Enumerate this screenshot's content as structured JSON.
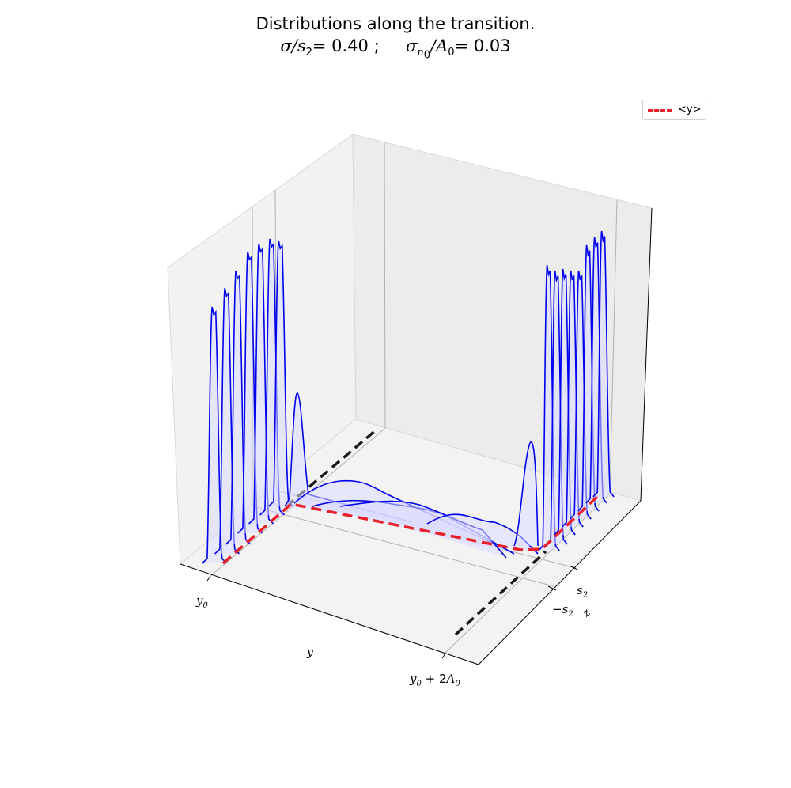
{
  "title": {
    "line1": "Distributions along the transition.",
    "line2_sigma": "σ",
    "line2_over": "/",
    "line2_s": "s",
    "line2_s_sub": "2",
    "line2_eq1": "= 0.40 ;",
    "line2_sigma2": "σ",
    "line2_n": "n",
    "line2_n_sub": "0",
    "line2_over2": "/",
    "line2_A": "A",
    "line2_A_sub": "0",
    "line2_eq2": "= 0.03"
  },
  "legend": {
    "label": "<y>",
    "color": "#e8202a"
  },
  "axes": {
    "y_ticks": [
      "y0",
      "y0 + 2A0"
    ],
    "y_label": "y",
    "z_ticks": [
      "s2",
      "−s2"
    ],
    "z_label": "z"
  },
  "chart_data": {
    "type": "area",
    "description_axis": "3D ridge plot of distributions of y along z",
    "xlabel": "y",
    "zlabel": "z",
    "x_ticks": [
      "y₀",
      "y₀ + 2A₀"
    ],
    "z_ticks": [
      "−s₂",
      "s₂"
    ],
    "mean_line_label": "<y>",
    "colors": {
      "curves": "#0000ee",
      "fill": "#dcdcff",
      "mean": "#e8202a",
      "guides": "#1a1a1a"
    },
    "left_group_count": 8,
    "middle_group_count": 4,
    "right_group_count": 9
  }
}
